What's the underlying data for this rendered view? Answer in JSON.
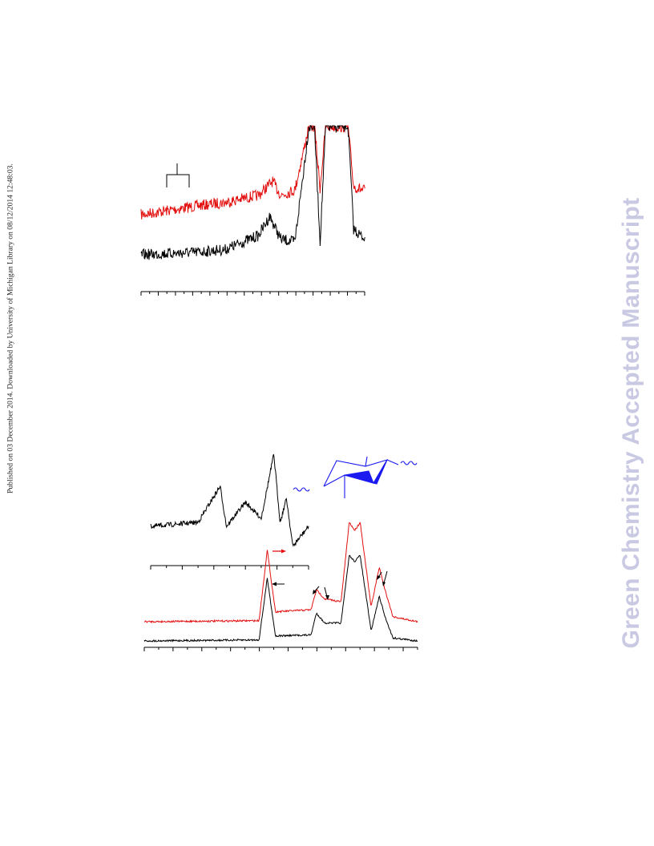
{
  "header_note": "Published on 03 December 2014. Downloaded by University of Michigan Library on 08/12/2014 12:48:03.",
  "watermark": "Green Chemistry Accepted Manuscript",
  "colors": {
    "red_trace": "#e31010",
    "black_trace": "#000000",
    "structure": "#1a1af0"
  },
  "chart_data": [
    {
      "type": "line",
      "title": "",
      "xlabel": "",
      "ylabel": "",
      "x_ticks": 27,
      "series": [
        {
          "name": "",
          "color": "#e31010",
          "points": [
            [
              0,
              0
            ],
            [
              0.1,
              0.05
            ],
            [
              0.2,
              0.1
            ],
            [
              0.3,
              0.14
            ],
            [
              0.42,
              0.22
            ],
            [
              0.47,
              0.38
            ],
            [
              0.5,
              0.22
            ],
            [
              0.55,
              0.28
            ],
            [
              0.6,
              1
            ],
            [
              0.62,
              1
            ],
            [
              0.64,
              0.3
            ],
            [
              0.66,
              1
            ],
            [
              0.74,
              1
            ],
            [
              0.76,
              0.32
            ],
            [
              0.79,
              0.28
            ],
            [
              0.8,
              0.28
            ]
          ]
        },
        {
          "name": "",
          "color": "#000000",
          "points": [
            [
              0,
              0
            ],
            [
              0.1,
              0.01
            ],
            [
              0.2,
              0.02
            ],
            [
              0.3,
              0.04
            ],
            [
              0.42,
              0.15
            ],
            [
              0.46,
              0.3
            ],
            [
              0.5,
              0.12
            ],
            [
              0.55,
              0.1
            ],
            [
              0.6,
              1
            ],
            [
              0.62,
              1
            ],
            [
              0.64,
              0.1
            ],
            [
              0.66,
              1
            ],
            [
              0.74,
              1
            ],
            [
              0.76,
              0.2
            ],
            [
              0.79,
              0.14
            ],
            [
              0.8,
              0.14
            ]
          ]
        }
      ],
      "annotations": [
        "bracket"
      ]
    },
    {
      "type": "line",
      "title": "",
      "xlabel": "",
      "ylabel": "",
      "x_ticks": 11,
      "series": [
        {
          "name": "",
          "color": "#000000",
          "points": [
            [
              0,
              0.05
            ],
            [
              0.3,
              0.1
            ],
            [
              0.44,
              0.55
            ],
            [
              0.48,
              0.05
            ],
            [
              0.6,
              0.35
            ],
            [
              0.7,
              0.15
            ],
            [
              0.78,
              0.95
            ],
            [
              0.82,
              0.1
            ],
            [
              0.86,
              0.4
            ],
            [
              0.9,
              -0.2
            ],
            [
              1,
              0.05
            ]
          ]
        }
      ],
      "annotations": [
        "red-arrow"
      ]
    },
    {
      "type": "line",
      "title": "",
      "xlabel": "",
      "ylabel": "",
      "x_ticks": 20,
      "series": [
        {
          "name": "",
          "color": "#e31010",
          "points": [
            [
              0,
              0
            ],
            [
              0.42,
              0.01
            ],
            [
              0.45,
              0.72
            ],
            [
              0.48,
              0.1
            ],
            [
              0.61,
              0.12
            ],
            [
              0.63,
              0.32
            ],
            [
              0.66,
              0.23
            ],
            [
              0.72,
              0.2
            ],
            [
              0.75,
              1
            ],
            [
              0.77,
              0.92
            ],
            [
              0.79,
              1
            ],
            [
              0.83,
              0.15
            ],
            [
              0.86,
              0.55
            ],
            [
              0.88,
              0.33
            ],
            [
              0.91,
              0.05
            ],
            [
              1,
              0
            ]
          ]
        },
        {
          "name": "",
          "color": "#000000",
          "points": [
            [
              0,
              0
            ],
            [
              0.42,
              0.01
            ],
            [
              0.45,
              0.63
            ],
            [
              0.48,
              0.05
            ],
            [
              0.61,
              0.06
            ],
            [
              0.63,
              0.28
            ],
            [
              0.66,
              0.18
            ],
            [
              0.72,
              0.18
            ],
            [
              0.75,
              0.86
            ],
            [
              0.77,
              0.8
            ],
            [
              0.79,
              0.86
            ],
            [
              0.83,
              0.1
            ],
            [
              0.86,
              0.45
            ],
            [
              0.88,
              0.25
            ],
            [
              0.91,
              0.03
            ],
            [
              1,
              0
            ]
          ]
        }
      ],
      "annotations": [
        "arrow-left",
        "arrow-down-1",
        "arrow-down-2",
        "arrow-down-3",
        "arrow-down-4"
      ]
    }
  ]
}
